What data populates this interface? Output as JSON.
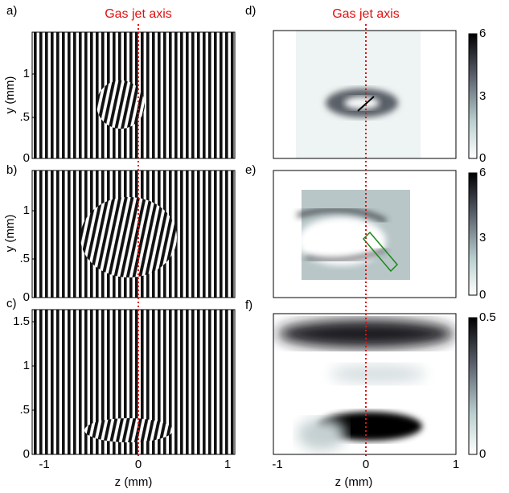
{
  "title_left": "Gas jet axis",
  "title_right": "Gas jet axis",
  "panels": [
    {
      "label": "a)",
      "ylabel": "y (mm)",
      "yticks": [
        "0",
        ".5",
        "1"
      ]
    },
    {
      "label": "b)",
      "ylabel": "y (mm)",
      "yticks": [
        "0",
        ".5",
        "1"
      ]
    },
    {
      "label": "c)",
      "yticks": [
        "0",
        ".5",
        "1",
        "1.5"
      ],
      "xticks": [
        "-1",
        "0",
        "1"
      ],
      "xlabel": "z (mm)"
    },
    {
      "label": "d)",
      "colorbar": [
        "0",
        "3",
        "6"
      ]
    },
    {
      "label": "e)",
      "colorbar": [
        "0",
        "3",
        "6"
      ]
    },
    {
      "label": "f)",
      "colorbar": [
        "0",
        "0.5"
      ],
      "xticks": [
        "-1",
        "0",
        "1"
      ],
      "xlabel": "z (mm)"
    }
  ]
}
